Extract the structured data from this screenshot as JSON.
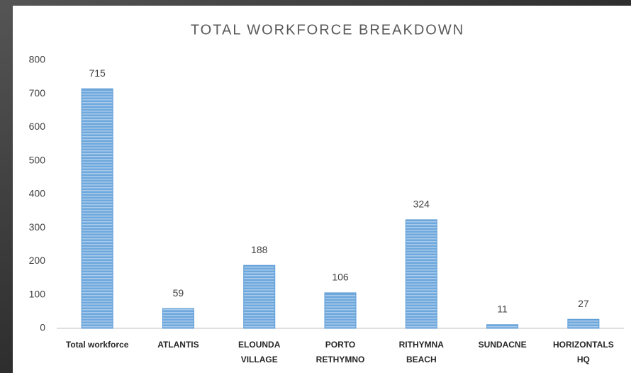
{
  "chart_data": {
    "type": "bar",
    "title": "TOTAL WORKFORCE BREAKDOWN",
    "categories": [
      "Total workforce",
      "ATLANTIS",
      "ELOUNDA VILLAGE",
      "PORTO RETHYMNO",
      "RITHYMNA BEACH",
      "SUNDACNE",
      "HORIZONTALS HQ"
    ],
    "values": [
      715,
      59,
      188,
      106,
      324,
      11,
      27
    ],
    "color": "#5b9bd5",
    "ylim": [
      0,
      800
    ],
    "yticks": [
      0,
      100,
      200,
      300,
      400,
      500,
      600,
      700,
      800
    ],
    "grid": false
  }
}
